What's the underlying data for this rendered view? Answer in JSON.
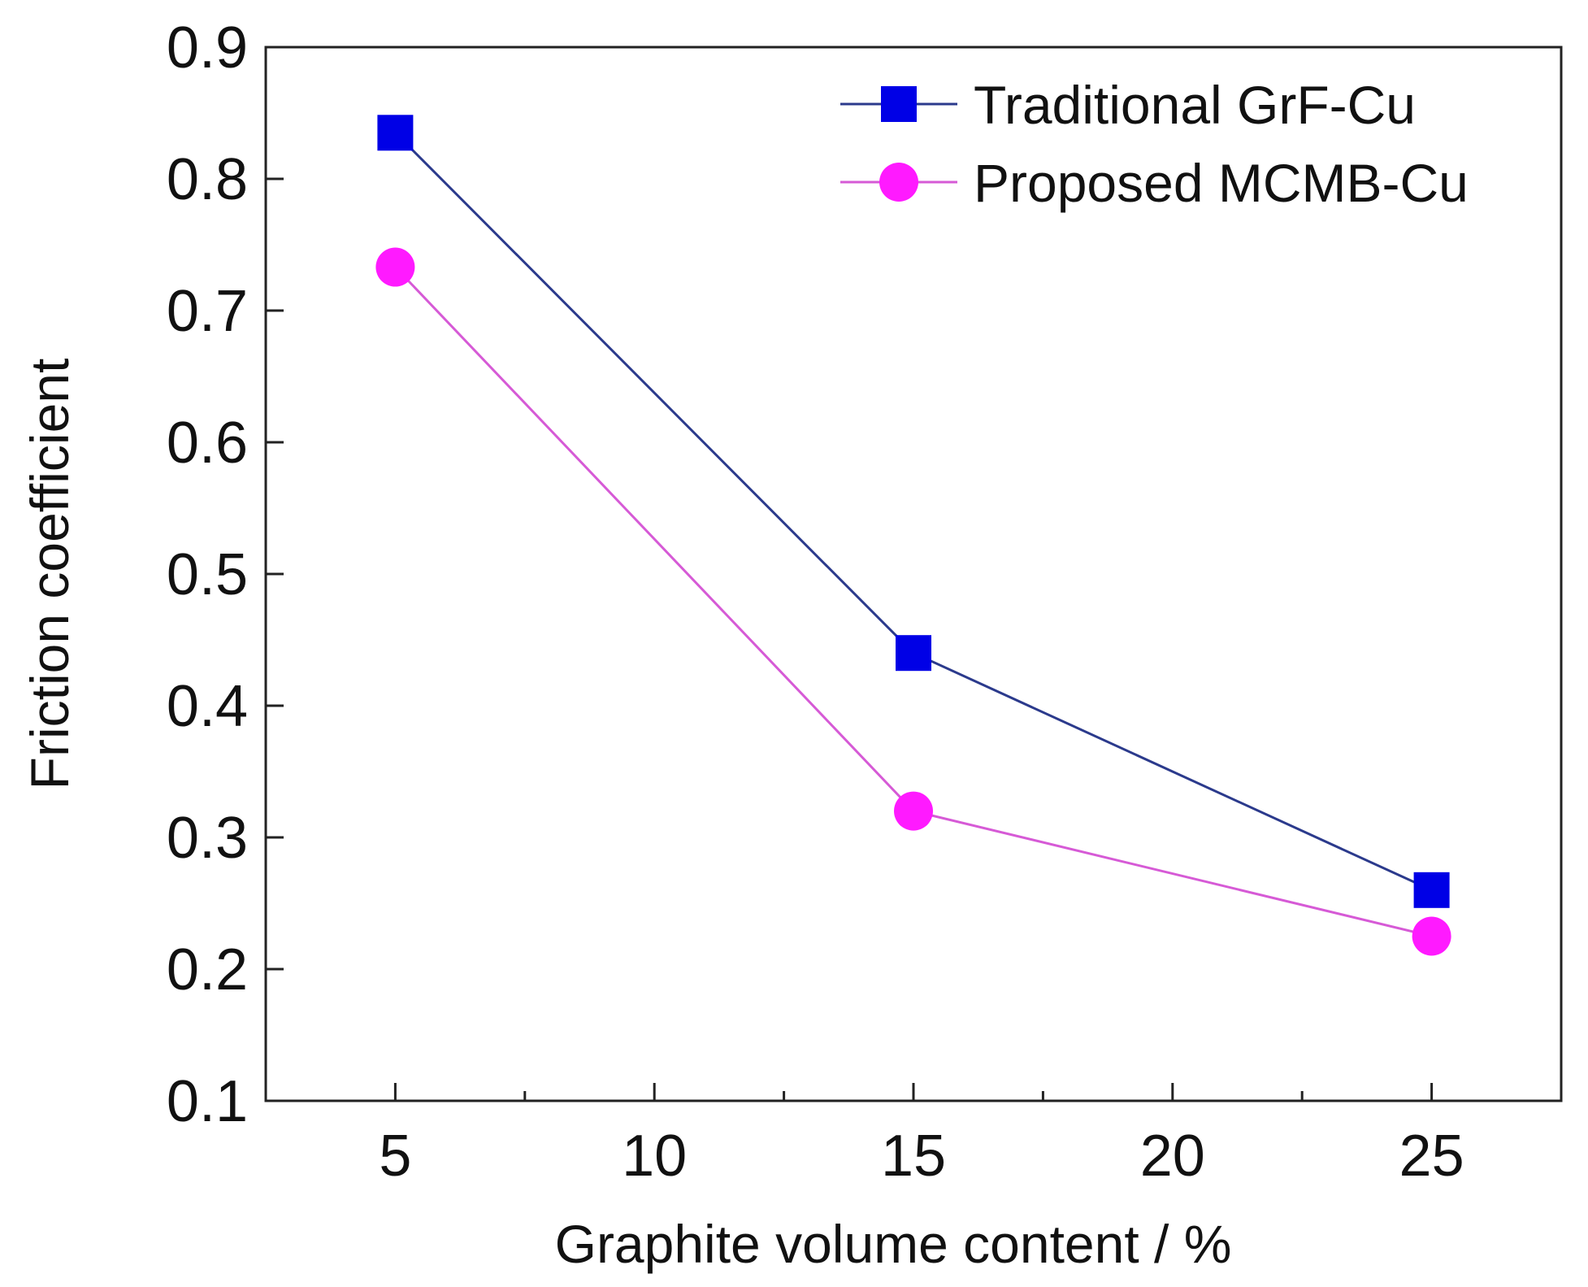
{
  "chart_data": {
    "type": "line",
    "title": "",
    "xlabel": "Graphite volume content / %",
    "ylabel": "Friction coefficient",
    "x": [
      5,
      15,
      25
    ],
    "xlim": [
      2.5,
      27.5
    ],
    "ylim": [
      0.1,
      0.9
    ],
    "xticks": [
      5,
      10,
      15,
      20,
      25
    ],
    "xtick_labels": [
      "5",
      "10",
      "15",
      "20",
      "25"
    ],
    "xminor": [
      7.5,
      12.5,
      17.5,
      22.5
    ],
    "yticks": [
      0.1,
      0.2,
      0.3,
      0.4,
      0.5,
      0.6,
      0.7,
      0.8,
      0.9
    ],
    "ytick_labels": [
      "0.1",
      "0.2",
      "0.3",
      "0.4",
      "0.5",
      "0.6",
      "0.7",
      "0.8",
      "0.9"
    ],
    "grid": false,
    "legend_position": "top-right",
    "series": [
      {
        "name": "Traditional GrF-Cu",
        "values": [
          0.835,
          0.44,
          0.26
        ],
        "marker": "square",
        "color": "#0000e6",
        "line_color": "#2b3a8c"
      },
      {
        "name": "Proposed MCMB-Cu",
        "values": [
          0.733,
          0.32,
          0.225
        ],
        "marker": "circle",
        "color": "#ff1aff",
        "line_color": "#d65ad6"
      }
    ]
  }
}
